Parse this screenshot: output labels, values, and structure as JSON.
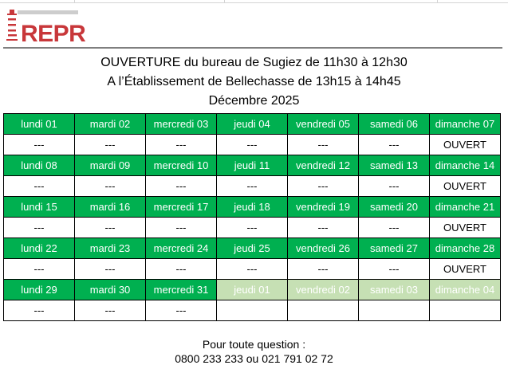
{
  "logo": {
    "text": "REPR",
    "color": "#c8373a"
  },
  "title": {
    "line1": "OUVERTURE du bureau de Sugiez de 11h30 à 12h30",
    "line2": "A l’Établissement de Bellechasse de 13h15 à 14h45",
    "line3": "Décembre 2025"
  },
  "colors": {
    "header_green": "#00b050",
    "other_month_green": "#c6e0b4"
  },
  "weeks": [
    {
      "days": [
        {
          "label": "lundi 01",
          "value": "---"
        },
        {
          "label": "mardi 02",
          "value": "---"
        },
        {
          "label": "mercredi 03",
          "value": "---"
        },
        {
          "label": "jeudi 04",
          "value": "---"
        },
        {
          "label": "vendredi 05",
          "value": "---"
        },
        {
          "label": "samedi 06",
          "value": "---"
        },
        {
          "label": "dimanche 07",
          "value": "OUVERT"
        }
      ]
    },
    {
      "days": [
        {
          "label": "lundi 08",
          "value": "---"
        },
        {
          "label": "mardi 09",
          "value": "---"
        },
        {
          "label": "mercredi 10",
          "value": "---"
        },
        {
          "label": "jeudi 11",
          "value": "---"
        },
        {
          "label": "vendredi 12",
          "value": "---"
        },
        {
          "label": "samedi 13",
          "value": "---"
        },
        {
          "label": "dimanche 14",
          "value": "OUVERT"
        }
      ]
    },
    {
      "days": [
        {
          "label": "lundi 15",
          "value": "---"
        },
        {
          "label": "mardi 16",
          "value": "---"
        },
        {
          "label": "mercredi 17",
          "value": "---"
        },
        {
          "label": "jeudi 18",
          "value": "---"
        },
        {
          "label": "vendredi 19",
          "value": "---"
        },
        {
          "label": "samedi 20",
          "value": "---"
        },
        {
          "label": "dimanche 21",
          "value": "OUVERT"
        }
      ]
    },
    {
      "days": [
        {
          "label": "lundi 22",
          "value": "---"
        },
        {
          "label": "mardi 23",
          "value": "---"
        },
        {
          "label": "mercredi 24",
          "value": "---"
        },
        {
          "label": "jeudi 25",
          "value": "---"
        },
        {
          "label": "vendredi 26",
          "value": "---"
        },
        {
          "label": "samedi 27",
          "value": "---"
        },
        {
          "label": "dimanche 28",
          "value": "OUVERT"
        }
      ]
    },
    {
      "days": [
        {
          "label": "lundi 29",
          "value": "---"
        },
        {
          "label": "mardi 30",
          "value": "---"
        },
        {
          "label": "mercredi 31",
          "value": "---"
        },
        {
          "label": "jeudi 01",
          "value": "",
          "other_month": true
        },
        {
          "label": "vendredi 02",
          "value": "",
          "other_month": true
        },
        {
          "label": "samedi 03",
          "value": "",
          "other_month": true
        },
        {
          "label": "dimanche 04",
          "value": "",
          "other_month": true
        }
      ]
    }
  ],
  "footer": {
    "line1": "Pour toute question :",
    "line2": "0800 233 233 ou 021 791 02 72"
  }
}
